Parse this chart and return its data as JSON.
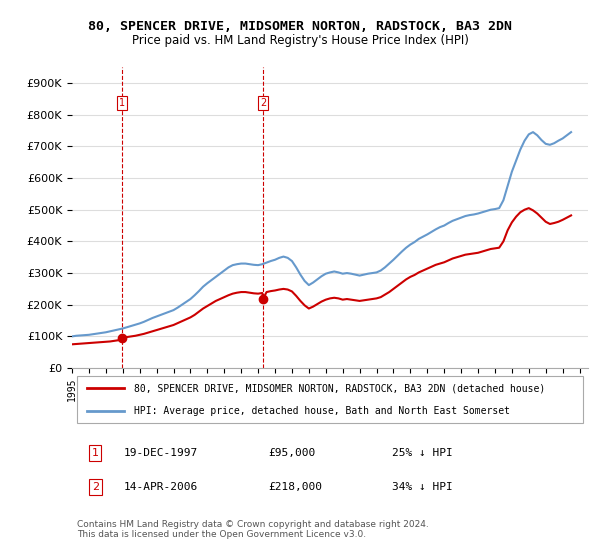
{
  "title": "80, SPENCER DRIVE, MIDSOMER NORTON, RADSTOCK, BA3 2DN",
  "subtitle": "Price paid vs. HM Land Registry's House Price Index (HPI)",
  "legend_line1": "80, SPENCER DRIVE, MIDSOMER NORTON, RADSTOCK, BA3 2DN (detached house)",
  "legend_line2": "HPI: Average price, detached house, Bath and North East Somerset",
  "footnote": "Contains HM Land Registry data © Crown copyright and database right 2024.\nThis data is licensed under the Open Government Licence v3.0.",
  "purchase1_date": "19-DEC-1997",
  "purchase1_price": 95000,
  "purchase1_hpi": "25% ↓ HPI",
  "purchase1_x": 1997.97,
  "purchase2_date": "14-APR-2006",
  "purchase2_price": 218000,
  "purchase2_hpi": "34% ↓ HPI",
  "purchase2_x": 2006.29,
  "vline1_x": 1997.97,
  "vline2_x": 2006.29,
  "red_color": "#cc0000",
  "blue_color": "#6699cc",
  "ylim_min": 0,
  "ylim_max": 950000,
  "xlim_min": 1995.0,
  "xlim_max": 2025.5,
  "background_color": "#ffffff",
  "grid_color": "#dddddd",
  "hpi_data_x": [
    1995.0,
    1995.25,
    1995.5,
    1995.75,
    1996.0,
    1996.25,
    1996.5,
    1996.75,
    1997.0,
    1997.25,
    1997.5,
    1997.75,
    1998.0,
    1998.25,
    1998.5,
    1998.75,
    1999.0,
    1999.25,
    1999.5,
    1999.75,
    2000.0,
    2000.25,
    2000.5,
    2000.75,
    2001.0,
    2001.25,
    2001.5,
    2001.75,
    2002.0,
    2002.25,
    2002.5,
    2002.75,
    2003.0,
    2003.25,
    2003.5,
    2003.75,
    2004.0,
    2004.25,
    2004.5,
    2004.75,
    2005.0,
    2005.25,
    2005.5,
    2005.75,
    2006.0,
    2006.25,
    2006.5,
    2006.75,
    2007.0,
    2007.25,
    2007.5,
    2007.75,
    2008.0,
    2008.25,
    2008.5,
    2008.75,
    2009.0,
    2009.25,
    2009.5,
    2009.75,
    2010.0,
    2010.25,
    2010.5,
    2010.75,
    2011.0,
    2011.25,
    2011.5,
    2011.75,
    2012.0,
    2012.25,
    2012.5,
    2012.75,
    2013.0,
    2013.25,
    2013.5,
    2013.75,
    2014.0,
    2014.25,
    2014.5,
    2014.75,
    2015.0,
    2015.25,
    2015.5,
    2015.75,
    2016.0,
    2016.25,
    2016.5,
    2016.75,
    2017.0,
    2017.25,
    2017.5,
    2017.75,
    2018.0,
    2018.25,
    2018.5,
    2018.75,
    2019.0,
    2019.25,
    2019.5,
    2019.75,
    2020.0,
    2020.25,
    2020.5,
    2020.75,
    2021.0,
    2021.25,
    2021.5,
    2021.75,
    2022.0,
    2022.25,
    2022.5,
    2022.75,
    2023.0,
    2023.25,
    2023.5,
    2023.75,
    2024.0,
    2024.25,
    2024.5
  ],
  "hpi_data_y": [
    100000,
    102000,
    103000,
    104000,
    105000,
    107000,
    109000,
    111000,
    113000,
    116000,
    119000,
    122000,
    125000,
    129000,
    133000,
    137000,
    141000,
    146000,
    152000,
    158000,
    163000,
    168000,
    173000,
    178000,
    183000,
    191000,
    200000,
    209000,
    218000,
    230000,
    243000,
    257000,
    268000,
    278000,
    288000,
    298000,
    308000,
    318000,
    325000,
    328000,
    330000,
    330000,
    328000,
    326000,
    325000,
    328000,
    333000,
    338000,
    342000,
    348000,
    352000,
    348000,
    338000,
    318000,
    295000,
    275000,
    262000,
    270000,
    280000,
    290000,
    298000,
    302000,
    305000,
    302000,
    298000,
    300000,
    298000,
    295000,
    292000,
    295000,
    298000,
    300000,
    302000,
    308000,
    318000,
    330000,
    342000,
    355000,
    368000,
    380000,
    390000,
    398000,
    408000,
    415000,
    422000,
    430000,
    438000,
    445000,
    450000,
    458000,
    465000,
    470000,
    475000,
    480000,
    483000,
    485000,
    488000,
    492000,
    496000,
    500000,
    502000,
    505000,
    530000,
    575000,
    620000,
    655000,
    690000,
    718000,
    738000,
    745000,
    735000,
    720000,
    708000,
    705000,
    710000,
    718000,
    725000,
    735000,
    745000
  ],
  "red_data_x": [
    1995.0,
    1995.25,
    1995.5,
    1995.75,
    1996.0,
    1996.25,
    1996.5,
    1996.75,
    1997.0,
    1997.25,
    1997.5,
    1997.75,
    1997.97,
    1998.0,
    1998.25,
    1998.5,
    1998.75,
    1999.0,
    1999.25,
    1999.5,
    1999.75,
    2000.0,
    2000.25,
    2000.5,
    2000.75,
    2001.0,
    2001.25,
    2001.5,
    2001.75,
    2002.0,
    2002.25,
    2002.5,
    2002.75,
    2003.0,
    2003.25,
    2003.5,
    2003.75,
    2004.0,
    2004.25,
    2004.5,
    2004.75,
    2005.0,
    2005.25,
    2005.5,
    2005.75,
    2006.0,
    2006.25,
    2006.29,
    2006.5,
    2006.75,
    2007.0,
    2007.25,
    2007.5,
    2007.75,
    2008.0,
    2008.25,
    2008.5,
    2008.75,
    2009.0,
    2009.25,
    2009.5,
    2009.75,
    2010.0,
    2010.25,
    2010.5,
    2010.75,
    2011.0,
    2011.25,
    2011.5,
    2011.75,
    2012.0,
    2012.25,
    2012.5,
    2012.75,
    2013.0,
    2013.25,
    2013.5,
    2013.75,
    2014.0,
    2014.25,
    2014.5,
    2014.75,
    2015.0,
    2015.25,
    2015.5,
    2015.75,
    2016.0,
    2016.25,
    2016.5,
    2016.75,
    2017.0,
    2017.25,
    2017.5,
    2017.75,
    2018.0,
    2018.25,
    2018.5,
    2018.75,
    2019.0,
    2019.25,
    2019.5,
    2019.75,
    2020.0,
    2020.25,
    2020.5,
    2020.75,
    2021.0,
    2021.25,
    2021.5,
    2021.75,
    2022.0,
    2022.25,
    2022.5,
    2022.75,
    2023.0,
    2023.25,
    2023.5,
    2023.75,
    2024.0,
    2024.25,
    2024.5
  ],
  "red_data_y": [
    75000,
    76000,
    77000,
    78000,
    79000,
    80000,
    81000,
    82000,
    83000,
    84000,
    86000,
    88000,
    95000,
    96000,
    98000,
    100000,
    102000,
    105000,
    108000,
    112000,
    116000,
    120000,
    124000,
    128000,
    132000,
    136000,
    142000,
    148000,
    154000,
    160000,
    168000,
    178000,
    188000,
    196000,
    204000,
    212000,
    218000,
    224000,
    230000,
    235000,
    238000,
    240000,
    240000,
    238000,
    236000,
    235000,
    237000,
    218000,
    240000,
    243000,
    245000,
    248000,
    250000,
    248000,
    242000,
    228000,
    212000,
    198000,
    188000,
    194000,
    202000,
    210000,
    216000,
    220000,
    222000,
    220000,
    216000,
    218000,
    216000,
    214000,
    212000,
    214000,
    216000,
    218000,
    220000,
    224000,
    232000,
    240000,
    250000,
    260000,
    270000,
    280000,
    288000,
    294000,
    302000,
    308000,
    314000,
    320000,
    326000,
    330000,
    334000,
    340000,
    346000,
    350000,
    354000,
    358000,
    360000,
    362000,
    364000,
    368000,
    372000,
    376000,
    378000,
    380000,
    400000,
    435000,
    460000,
    478000,
    492000,
    500000,
    505000,
    498000,
    488000,
    475000,
    462000,
    455000,
    458000,
    462000,
    468000,
    475000,
    482000
  ]
}
